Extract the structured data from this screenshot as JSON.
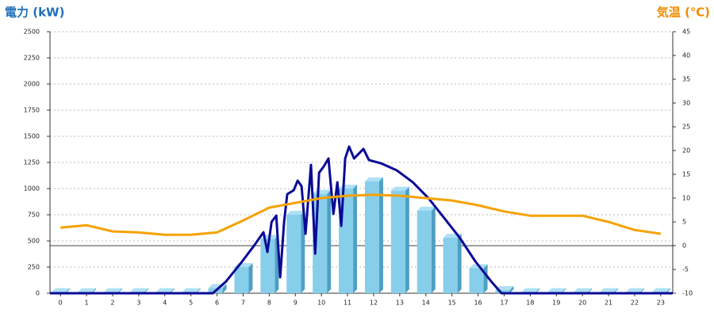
{
  "chart_data": {
    "type": "bar",
    "y_label": "電力 (kW)",
    "y2_label": "気温 (℃)",
    "xlim": [
      -0.4,
      23.46
    ],
    "xticks": [
      0,
      1,
      2,
      3,
      4,
      5,
      6,
      7,
      8,
      9,
      10,
      11,
      12,
      13,
      14,
      15,
      16,
      17,
      18,
      19,
      20,
      21,
      22,
      23
    ],
    "ylim": [
      0,
      2500
    ],
    "yticks": [
      0,
      250,
      500,
      750,
      1000,
      1250,
      1500,
      1750,
      2000,
      2250,
      2500
    ],
    "y2lim": [
      -10,
      45
    ],
    "y2ticks": [
      -10,
      -5,
      0,
      5,
      10,
      15,
      20,
      25,
      30,
      35,
      40,
      45
    ],
    "grid": true,
    "series": [
      {
        "type": "bar",
        "color": "#87ceeb",
        "x": [
          0,
          1,
          2,
          3,
          4,
          5,
          6,
          7,
          8,
          9,
          10,
          11,
          12,
          13,
          14,
          15,
          16,
          17,
          18,
          19,
          20,
          21,
          22,
          23
        ],
        "values": [
          10,
          10,
          10,
          10,
          10,
          10,
          50,
          250,
          520,
          750,
          950,
          1000,
          1070,
          980,
          790,
          530,
          240,
          30,
          10,
          10,
          10,
          10,
          10,
          10
        ]
      },
      {
        "type": "line",
        "color": "#0a0a96",
        "x": [
          -0.4,
          5.84,
          6.35,
          6.96,
          7.42,
          7.78,
          7.93,
          8.09,
          8.27,
          8.42,
          8.57,
          8.69,
          8.94,
          9.09,
          9.24,
          9.39,
          9.6,
          9.76,
          9.91,
          10.09,
          10.27,
          10.46,
          10.61,
          10.76,
          10.91,
          11.06,
          11.25,
          11.61,
          11.82,
          12.28,
          12.89,
          13.5,
          14.1,
          14.7,
          15.3,
          15.9,
          16.5,
          16.9,
          23.46
        ],
        "values": [
          0,
          0,
          114,
          303,
          455,
          583,
          394,
          682,
          742,
          152,
          682,
          947,
          985,
          1076,
          1023,
          568,
          1227,
          379,
          1152,
          1212,
          1288,
          758,
          1061,
          644,
          1288,
          1402,
          1288,
          1379,
          1273,
          1242,
          1174,
          1061,
          909,
          720,
          530,
          303,
          114,
          0,
          0
        ]
      },
      {
        "type": "line",
        "axis": "y2",
        "color": "#f5a200",
        "x": [
          0,
          1,
          2,
          3,
          4,
          5,
          6,
          7,
          8,
          9,
          10,
          11,
          12,
          13,
          14,
          15,
          16,
          17,
          18,
          19,
          20,
          21,
          22,
          23
        ],
        "values": [
          3.8,
          4.3,
          3.0,
          2.8,
          2.3,
          2.3,
          2.8,
          5.3,
          8.0,
          9.0,
          10.0,
          10.5,
          10.7,
          10.5,
          10.0,
          9.5,
          8.5,
          7.2,
          6.3,
          6.3,
          6.3,
          5.0,
          3.3,
          2.5
        ]
      }
    ]
  }
}
